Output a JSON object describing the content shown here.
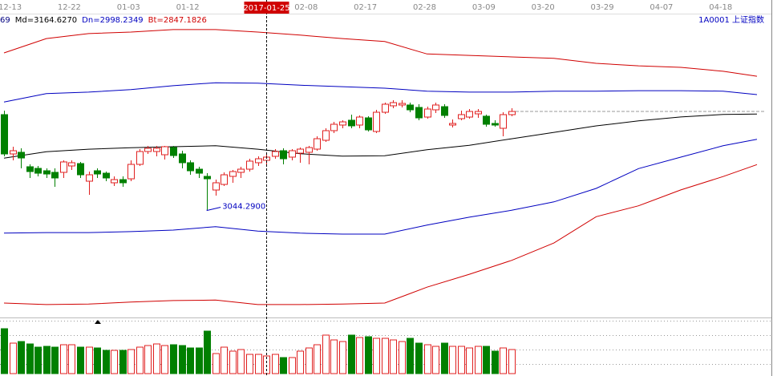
{
  "chart_data": {
    "type": "candlestick",
    "indicator_labels": [
      {
        "text": "69",
        "color": "#000080"
      },
      {
        "text": "Md=3164.6270",
        "color": "#000000"
      },
      {
        "text": "Dn=2998.2349",
        "color": "#0000c0"
      },
      {
        "text": "Bt=2847.1826",
        "color": "#d00000"
      }
    ],
    "security": "1A0001  上证指数",
    "categories": [
      null,
      "12-13",
      null,
      null,
      null,
      null,
      null,
      null,
      "12-22",
      null,
      null,
      null,
      null,
      null,
      null,
      "01-03",
      null,
      null,
      null,
      null,
      null,
      null,
      "01-12",
      null,
      null,
      null,
      null,
      null,
      null,
      null,
      null,
      "2017-01-25",
      null,
      null,
      null,
      null,
      "02-08",
      null,
      null,
      null,
      null,
      null,
      null,
      "02-17",
      null,
      null,
      null,
      null,
      null,
      null,
      "02-28",
      null,
      null,
      null,
      null,
      null,
      null,
      "03-09",
      null,
      null,
      null,
      null,
      null,
      null,
      "03-20",
      null,
      null,
      null,
      null,
      null,
      null,
      "03-29",
      null,
      null,
      null,
      null,
      null,
      null,
      "04-07",
      null,
      null,
      null,
      null,
      null,
      null,
      "04-18",
      null,
      null,
      null,
      null
    ],
    "crosshair_index": 31,
    "ylim": [
      2828.6,
      3437.6
    ],
    "up_color": "#e02020",
    "down_color": "#008000",
    "candles": {
      "open": [
        3235.7,
        3156.5,
        3159.8,
        3130.7,
        3127.4,
        3122.6,
        3119.4,
        3119.4,
        3132.3,
        3137.1,
        3101.6,
        3122.6,
        3117.7,
        3098.4,
        3104.8,
        3106.4,
        3135.5,
        3161.4,
        3161.4,
        3154.9,
        3169.4,
        3156.5,
        3138.8,
        3125.8,
        3111.3,
        3083.8,
        3095.1,
        3111.3,
        3119.4,
        3125.8,
        3138.8,
        3143.6,
        3151.7,
        3163.0,
        3150.1,
        3158.1,
        3159.8,
        3166.2,
        3184.0,
        3203.4,
        3214.7,
        3224.4,
        3214.7,
        3229.2,
        3201.8,
        3240.5,
        3253.5,
        3255.1,
        3255.1,
        3250.2,
        3230.8,
        3245.4,
        3251.8,
        3214.7,
        3227.6,
        3230.8,
        3237.3,
        3232.5,
        3217.9,
        3208.2,
        3235.7
      ],
      "high": [
        3243.8,
        3171.1,
        3167.8,
        3135.5,
        3132.3,
        3127.4,
        3127.4,
        3143.6,
        3143.6,
        3140.4,
        3121.0,
        3127.4,
        3121.0,
        3111.3,
        3111.3,
        3143.6,
        3166.2,
        3172.7,
        3172.7,
        3172.7,
        3172.7,
        3163.0,
        3143.6,
        3130.7,
        3117.7,
        3104.8,
        3119.4,
        3124.2,
        3130.7,
        3146.8,
        3151.7,
        3156.5,
        3166.2,
        3167.8,
        3166.2,
        3169.4,
        3172.7,
        3192.1,
        3208.2,
        3221.1,
        3224.4,
        3235.7,
        3234.1,
        3232.5,
        3245.4,
        3259.9,
        3264.8,
        3264.8,
        3259.9,
        3256.7,
        3251.8,
        3259.9,
        3256.7,
        3226.0,
        3243.8,
        3247.0,
        3247.0,
        3235.7,
        3224.4,
        3240.5,
        3248.6
      ],
      "low": [
        3151.7,
        3143.6,
        3127.4,
        3108.1,
        3111.3,
        3108.1,
        3090.3,
        3108.1,
        3124.2,
        3108.1,
        3074.1,
        3108.1,
        3101.6,
        3091.9,
        3090.3,
        3101.6,
        3132.3,
        3156.5,
        3151.7,
        3145.2,
        3148.4,
        3127.4,
        3114.5,
        3108.1,
        3044.29,
        3072.5,
        3091.9,
        3098.4,
        3108.1,
        3121.0,
        3132.3,
        3135.5,
        3146.8,
        3135.5,
        3143.6,
        3138.8,
        3135.5,
        3163.0,
        3180.8,
        3198.5,
        3208.2,
        3208.2,
        3208.2,
        3201.8,
        3198.5,
        3237.3,
        3248.6,
        3250.2,
        3240.5,
        3224.4,
        3227.6,
        3238.9,
        3229.2,
        3209.8,
        3224.4,
        3227.6,
        3229.2,
        3211.5,
        3211.5,
        3192.1,
        3232.5
      ],
      "close": [
        3156.5,
        3163.0,
        3148.4,
        3121.0,
        3117.7,
        3116.1,
        3108.1,
        3140.4,
        3138.8,
        3114.5,
        3114.5,
        3116.1,
        3108.1,
        3104.8,
        3098.4,
        3135.5,
        3161.4,
        3167.8,
        3167.8,
        3171.1,
        3153.3,
        3138.8,
        3122.6,
        3117.7,
        3106.4,
        3098.4,
        3114.5,
        3121.0,
        3125.8,
        3142.0,
        3146.8,
        3150.1,
        3161.4,
        3146.8,
        3163.0,
        3166.2,
        3169.4,
        3187.2,
        3203.4,
        3216.3,
        3221.1,
        3213.1,
        3230.8,
        3205.0,
        3240.5,
        3256.7,
        3259.9,
        3258.3,
        3245.4,
        3229.2,
        3247.0,
        3255.1,
        3234.1,
        3217.9,
        3235.7,
        3242.1,
        3242.1,
        3216.3,
        3214.7,
        3235.7,
        3242.1
      ]
    },
    "bands": [
      {
        "color": "#d00000",
        "x": [
          0,
          5,
          10,
          15,
          20,
          25,
          30,
          35,
          40,
          45,
          50,
          55,
          60,
          65,
          70,
          75,
          80,
          85,
          89
        ],
        "values": [
          3360,
          3389,
          3399,
          3402,
          3407,
          3407,
          3402,
          3396,
          3389,
          3383,
          3358,
          3355,
          3352,
          3349,
          3339,
          3334,
          3331,
          3323,
          3313
        ]
      },
      {
        "color": "#0000c0",
        "x": [
          0,
          5,
          10,
          15,
          20,
          25,
          30,
          35,
          40,
          45,
          50,
          55,
          60,
          65,
          70,
          75,
          80,
          85,
          89
        ],
        "values": [
          3261,
          3278,
          3281,
          3286,
          3294,
          3300,
          3299,
          3295,
          3292,
          3289,
          3283,
          3281,
          3281,
          3283,
          3283,
          3284,
          3284,
          3283,
          3276
        ]
      },
      {
        "color": "#000000",
        "x": [
          0,
          5,
          10,
          15,
          20,
          25,
          30,
          35,
          40,
          45,
          50,
          55,
          60,
          65,
          70,
          75,
          80,
          85,
          89
        ],
        "values": [
          3148,
          3161,
          3166,
          3169,
          3171,
          3173,
          3166,
          3157,
          3152,
          3153,
          3165,
          3174,
          3187,
          3200,
          3213,
          3223,
          3231,
          3236,
          3237
        ]
      },
      {
        "color": "#0000c0",
        "x": [
          0,
          5,
          10,
          15,
          20,
          25,
          30,
          35,
          40,
          45,
          50,
          55,
          60,
          65,
          70,
          75,
          80,
          85,
          89
        ],
        "values": [
          2997,
          2998,
          2998,
          3000,
          3003,
          3010,
          3001,
          2997,
          2995,
          2995,
          3013,
          3029,
          3043,
          3060,
          3087,
          3127,
          3150,
          3173,
          3186
        ]
      },
      {
        "color": "#d00000",
        "x": [
          0,
          5,
          10,
          15,
          20,
          25,
          30,
          35,
          40,
          45,
          50,
          55,
          60,
          65,
          70,
          75,
          80,
          85,
          89
        ],
        "values": [
          2856,
          2853,
          2854,
          2858,
          2861,
          2862,
          2853,
          2853,
          2854,
          2856,
          2888,
          2914,
          2942,
          2977,
          3030,
          3052,
          3084,
          3111,
          3135
        ]
      }
    ],
    "annotation": {
      "index": 24,
      "value": 3044.29,
      "label": "3044.2900",
      "color": "#0000c0"
    },
    "volume": {
      "ylim": [
        0,
        68
      ],
      "values": [
        56,
        38,
        40,
        37,
        33,
        34,
        33,
        36,
        36,
        33,
        33,
        32,
        29,
        29,
        29,
        30,
        33,
        35,
        37,
        35,
        36,
        35,
        32,
        32,
        53,
        25,
        33,
        28,
        30,
        24,
        24,
        22,
        24,
        20,
        20,
        28,
        32,
        36,
        48,
        42,
        40,
        48,
        45,
        46,
        44,
        44,
        42,
        40,
        44,
        38,
        36,
        34,
        38,
        34,
        34,
        32,
        34,
        34,
        28,
        32,
        30
      ]
    }
  }
}
